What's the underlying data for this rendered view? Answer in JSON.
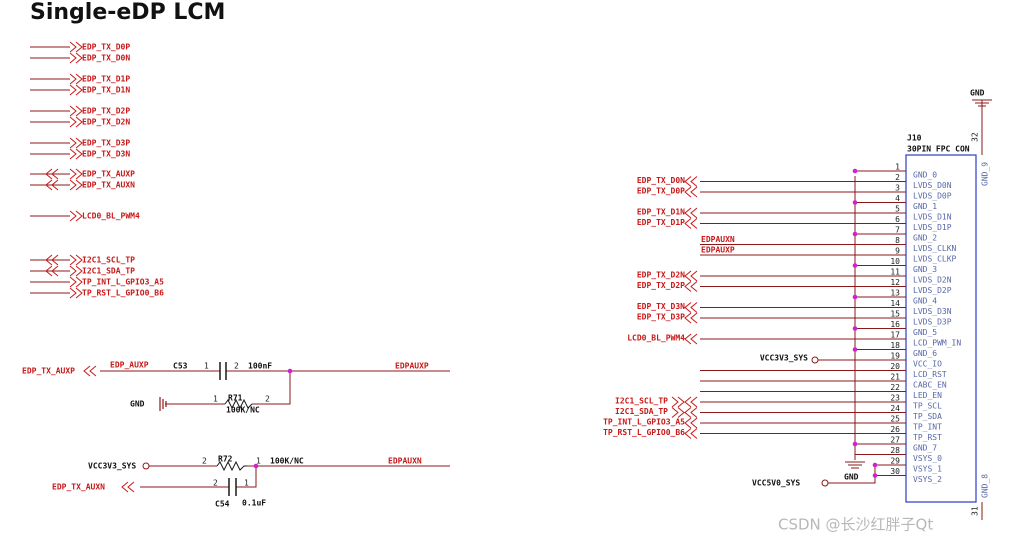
{
  "title": "Single-eDP LCM",
  "left_nets": [
    "EDP_TX_D0P",
    "EDP_TX_D0N",
    "EDP_TX_D1P",
    "EDP_TX_D1N",
    "EDP_TX_D2P",
    "EDP_TX_D2N",
    "EDP_TX_D3P",
    "EDP_TX_D3N",
    "EDP_TX_AUXP",
    "EDP_TX_AUXN",
    "LCD0_BL_PWM4",
    "I2C1_SCL_TP",
    "I2C1_SDA_TP",
    "TP_INT_L_GPIO3_A5",
    "TP_RST_L_GPIO0_B6"
  ],
  "circuit": {
    "auxp_in": "EDP_TX_AUXP",
    "auxp_local": "EDP_AUXP",
    "c53_ref": "C53",
    "c53_pin1": "1",
    "c53_pin2": "2",
    "c53_value": "100nF",
    "auxp_out": "EDPAUXP",
    "gnd": "GND",
    "r71_pin1": "1",
    "r71_ref": "R71",
    "r71_pin2": "2",
    "r71_value": "100K/NC",
    "vcc": "VCC3V3_SYS",
    "r72_pin2": "2",
    "r72_ref": "R72",
    "r72_pin1": "1",
    "r72_value": "100K/NC",
    "auxn_out": "EDPAUXN",
    "auxn_in": "EDP_TX_AUXN",
    "c54_pin2": "2",
    "c54_pin1": "1",
    "c54_ref": "C54",
    "c54_value": "0.1uF"
  },
  "connector": {
    "ref": "J10",
    "part": "30PIN FPC CON",
    "top_gnd": "GND",
    "bottom_gnd": "GND",
    "vcc5": "VCC5V0_SYS",
    "side_pins": [
      {
        "num": 32,
        "name": "GND_9"
      },
      {
        "num": 31,
        "name": "GND_8"
      }
    ],
    "pins": [
      {
        "num": 1,
        "name": "GND_0"
      },
      {
        "num": 2,
        "name": "LVDS_D0N",
        "net": "EDP_TX_D0N"
      },
      {
        "num": 3,
        "name": "LVDS_D0P",
        "net": "EDP_TX_D0P"
      },
      {
        "num": 4,
        "name": "GND_1"
      },
      {
        "num": 5,
        "name": "LVDS_D1N",
        "net": "EDP_TX_D1N"
      },
      {
        "num": 6,
        "name": "LVDS_D1P",
        "net": "EDP_TX_D1P"
      },
      {
        "num": 7,
        "name": "GND_2"
      },
      {
        "num": 8,
        "name": "LVDS_CLKN",
        "net": "EDPAUXN"
      },
      {
        "num": 9,
        "name": "LVDS_CLKP",
        "net": "EDPAUXP"
      },
      {
        "num": 10,
        "name": "GND_3"
      },
      {
        "num": 11,
        "name": "LVDS_D2N",
        "net": "EDP_TX_D2N"
      },
      {
        "num": 12,
        "name": "LVDS_D2P",
        "net": "EDP_TX_D2P"
      },
      {
        "num": 13,
        "name": "GND_4"
      },
      {
        "num": 14,
        "name": "LVDS_D3N",
        "net": "EDP_TX_D3N"
      },
      {
        "num": 15,
        "name": "LVDS_D3P",
        "net": "EDP_TX_D3P"
      },
      {
        "num": 16,
        "name": "GND_5"
      },
      {
        "num": 17,
        "name": "LCD_PWM_IN",
        "net": "LCD0_BL_PWM4"
      },
      {
        "num": 18,
        "name": "GND_6"
      },
      {
        "num": 19,
        "name": "VCC_IO",
        "net": "VCC3V3_SYS"
      },
      {
        "num": 20,
        "name": "LCD_RST"
      },
      {
        "num": 21,
        "name": "CABC_EN"
      },
      {
        "num": 22,
        "name": "LED_EN"
      },
      {
        "num": 23,
        "name": "TP_SCL",
        "net": "I2C1_SCL_TP"
      },
      {
        "num": 24,
        "name": "TP_SDA",
        "net": "I2C1_SDA_TP"
      },
      {
        "num": 25,
        "name": "TP_INT",
        "net": "TP_INT_L_GPIO3_A5"
      },
      {
        "num": 26,
        "name": "TP_RST",
        "net": "TP_RST_L_GPIO0_B6"
      },
      {
        "num": 27,
        "name": "GND_7"
      },
      {
        "num": 28,
        "name": "VSYS_0"
      },
      {
        "num": 29,
        "name": "VSYS_1"
      },
      {
        "num": 30,
        "name": "VSYS_2"
      }
    ]
  },
  "watermark": "CSDN @长沙红胖子Qt"
}
